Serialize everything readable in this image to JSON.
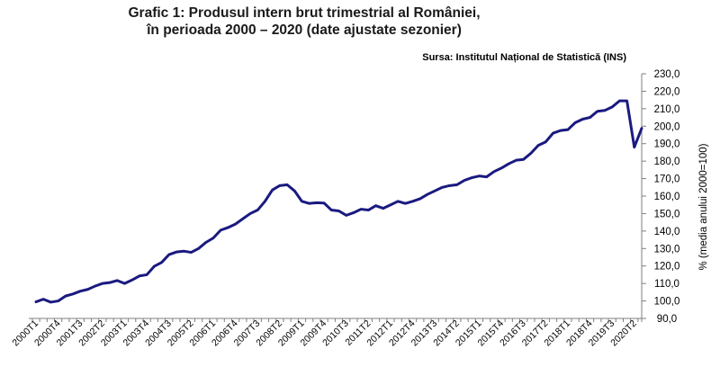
{
  "chart_data": {
    "type": "line",
    "title": "Grafic 1: Produsul intern brut trimestrial al României,",
    "subtitle": "în perioada 2000 – 2020 (date ajustate sezonier)",
    "source": "Sursa: Institutul Național de Statistică (INS)",
    "ylabel": "% (media anului 2000=100)",
    "xlabel": "",
    "ylim": [
      90,
      230
    ],
    "ytick_step": 10,
    "y_axis_side": "right",
    "grid": false,
    "legend": "none",
    "line_color": "#1a1a80",
    "x_tick_labels": [
      "2000T1",
      "2000T4",
      "2001T3",
      "2002T2",
      "2003T1",
      "2003T4",
      "2004T3",
      "2005T2",
      "2006T1",
      "2006T4",
      "2007T3",
      "2008T2",
      "2009T1",
      "2009T4",
      "2010T3",
      "2011T2",
      "2012T1",
      "2012T4",
      "2013T3",
      "2014T2",
      "2015T1",
      "2015T4",
      "2016T3",
      "2017T2",
      "2018T1",
      "2018T4",
      "2019T3",
      "2020T2"
    ],
    "x": [
      "2000T1",
      "2000T2",
      "2000T3",
      "2000T4",
      "2001T1",
      "2001T2",
      "2001T3",
      "2001T4",
      "2002T1",
      "2002T2",
      "2002T3",
      "2002T4",
      "2003T1",
      "2003T2",
      "2003T3",
      "2003T4",
      "2004T1",
      "2004T2",
      "2004T3",
      "2004T4",
      "2005T1",
      "2005T2",
      "2005T3",
      "2005T4",
      "2006T1",
      "2006T2",
      "2006T3",
      "2006T4",
      "2007T1",
      "2007T2",
      "2007T3",
      "2007T4",
      "2008T1",
      "2008T2",
      "2008T3",
      "2008T4",
      "2009T1",
      "2009T2",
      "2009T3",
      "2009T4",
      "2010T1",
      "2010T2",
      "2010T3",
      "2010T4",
      "2011T1",
      "2011T2",
      "2011T3",
      "2011T4",
      "2012T1",
      "2012T2",
      "2012T3",
      "2012T4",
      "2013T1",
      "2013T2",
      "2013T3",
      "2013T4",
      "2014T1",
      "2014T2",
      "2014T3",
      "2014T4",
      "2015T1",
      "2015T2",
      "2015T3",
      "2015T4",
      "2016T1",
      "2016T2",
      "2016T3",
      "2016T4",
      "2017T1",
      "2017T2",
      "2017T3",
      "2017T4",
      "2018T1",
      "2018T2",
      "2018T3",
      "2018T4",
      "2019T1",
      "2019T2",
      "2019T3",
      "2019T4",
      "2020T1",
      "2020T2",
      "2020T3"
    ],
    "values": [
      99.5,
      101.0,
      99.3,
      100.0,
      102.8,
      104.0,
      105.6,
      106.6,
      108.5,
      110.0,
      110.5,
      111.7,
      110.0,
      112.0,
      114.3,
      115.0,
      119.8,
      122.0,
      126.5,
      128.0,
      128.5,
      127.8,
      130.0,
      133.5,
      136.0,
      140.5,
      142.0,
      144.0,
      147.0,
      150.0,
      152.0,
      157.0,
      163.5,
      166.0,
      166.5,
      163.0,
      157.0,
      155.8,
      156.2,
      156.0,
      152.0,
      151.5,
      149.0,
      150.5,
      152.5,
      152.0,
      154.5,
      153.0,
      155.0,
      157.0,
      155.8,
      157.0,
      158.5,
      161.0,
      163.0,
      165.0,
      166.0,
      166.5,
      169.0,
      170.5,
      171.5,
      171.0,
      174.0,
      176.0,
      178.5,
      180.5,
      181.0,
      184.5,
      189.0,
      191.0,
      196.0,
      197.5,
      198.0,
      202.0,
      204.0,
      205.0,
      208.5,
      209.0,
      211.0,
      214.5,
      214.5,
      188.0,
      198.8
    ]
  }
}
